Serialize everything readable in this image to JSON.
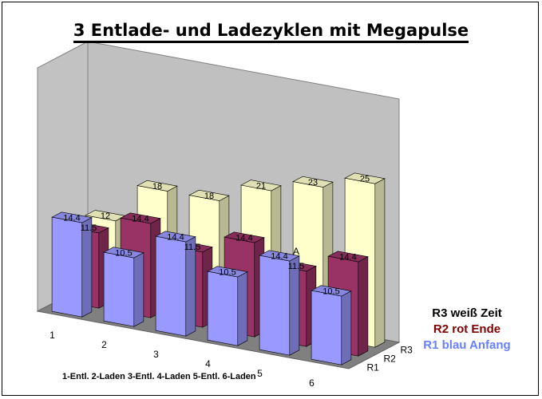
{
  "chart_data": {
    "type": "bar",
    "title": "3 Entlade- und Ladezyklen mit Megapulse",
    "categories": [
      "1",
      "2",
      "3",
      "4",
      "5",
      "6"
    ],
    "depth_labels": [
      "R1",
      "R2",
      "R3"
    ],
    "series": [
      {
        "name": "R1 blau Anfang",
        "row": "R1",
        "color": "#9999ff",
        "values": [
          14.4,
          10.5,
          14.4,
          10.5,
          14.4,
          10.5
        ],
        "labels": [
          "14.4",
          "10.5",
          "14.4",
          "10.5",
          "14.4",
          "10.5"
        ]
      },
      {
        "name": "R2 rot Ende",
        "row": "R2",
        "color": "#993366",
        "values": [
          11.5,
          14.4,
          11.5,
          14.4,
          11.5,
          14.4
        ],
        "labels": [
          "11.5",
          "14.4",
          "11.5",
          "14.4",
          "11.5",
          "14.4"
        ]
      },
      {
        "name": "R3 weiß Zeit",
        "row": "R3",
        "color": "#ffffcc",
        "values": [
          12,
          18,
          18,
          21,
          23,
          25
        ],
        "labels": [
          "12",
          "18",
          "18",
          "21",
          "23",
          "25"
        ]
      }
    ],
    "annotation": "A",
    "legend_position": "bottom-right",
    "grid": false
  },
  "legend": [
    {
      "text": "R3 weiß Zeit",
      "color": "#000000"
    },
    {
      "text": "R2 rot Ende",
      "color": "#800000"
    },
    {
      "text": "R1 blau Anfang",
      "color": "#6680ff"
    }
  ],
  "caption": "1-Entl. 2-Laden 3-Entl. 4-Laden 5-Entl. 6-Laden"
}
